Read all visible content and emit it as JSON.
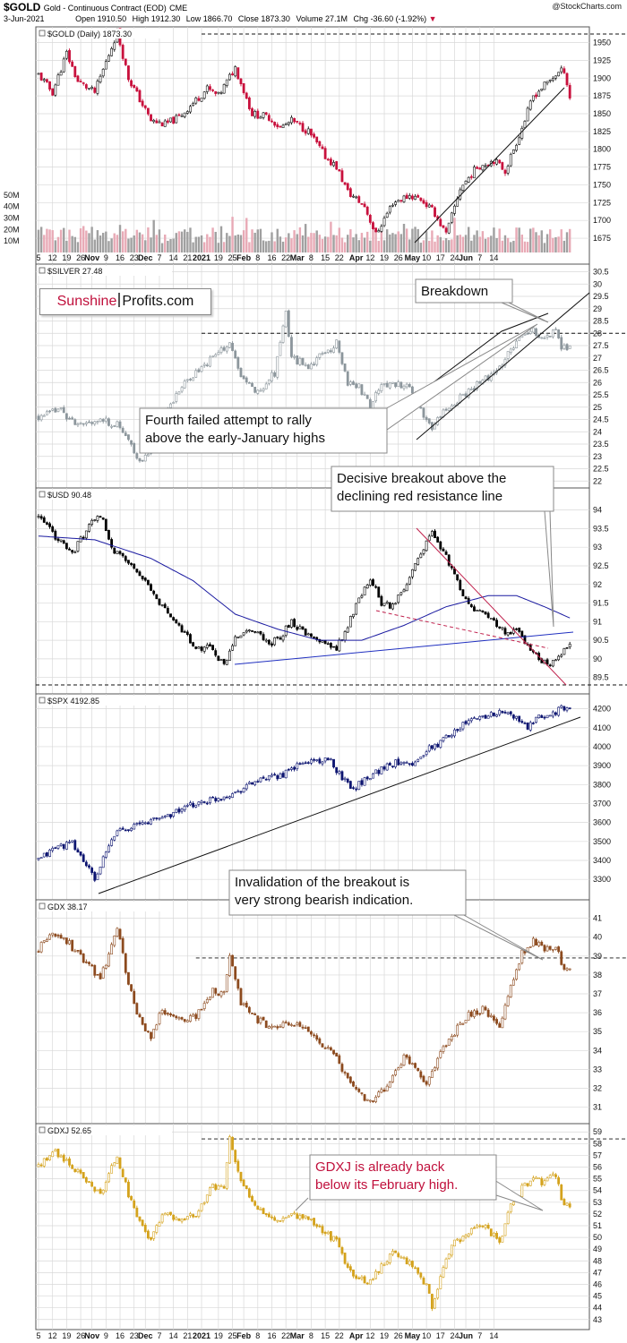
{
  "header": {
    "symbol": "$GOLD",
    "description": "Gold - Continuous Contract (EOD)",
    "exchange": "CME",
    "date": "3-Jun-2021",
    "open_label": "Open",
    "open": "1910.50",
    "high_label": "High",
    "high": "1912.30",
    "low_label": "Low",
    "low": "1866.70",
    "close_label": "Close",
    "close": "1873.30",
    "volume_label": "Volume",
    "volume": "27.1M",
    "chg_label": "Chg",
    "chg": "-36.60 (-1.92%)",
    "watermark": "@StockCharts.com"
  },
  "brand": {
    "part1": "Sunshine",
    "part2": "Profits.com"
  },
  "colors": {
    "gold_up": "#111111",
    "gold_down": "#c8103c",
    "silver": "#8c969c",
    "usd": "#000000",
    "usd_ma": "#1a1aa0",
    "spx": "#0c1470",
    "gdx": "#8c4a1e",
    "gdxj": "#d4a21c",
    "vol_up": "#a0a0a0",
    "vol_down": "#e8aab6",
    "grid": "#d8d8d8",
    "annot_red": "#c0103c",
    "resistance": "#c0204c",
    "support_blue": "#2030c0"
  },
  "x_axis": {
    "labels": [
      "5",
      "12",
      "19",
      "26",
      "Nov",
      "9",
      "16",
      "23",
      "Dec",
      "7",
      "14",
      "21",
      "2021",
      "19",
      "25",
      "Feb",
      "8",
      "16",
      "22",
      "Mar",
      "8",
      "15",
      "22",
      "Apr",
      "12",
      "19",
      "26",
      "May",
      "10",
      "17",
      "24",
      "Jun",
      "7",
      "14"
    ],
    "bold": [
      "Nov",
      "Dec",
      "2021",
      "Feb",
      "Mar",
      "Apr",
      "May",
      "Jun"
    ]
  },
  "chart_data": [
    {
      "type": "candlestick",
      "title": "$GOLD (Daily) 1873.30",
      "yticks": [
        1675,
        1700,
        1725,
        1750,
        1775,
        1800,
        1825,
        1850,
        1875,
        1900,
        1925,
        1950
      ],
      "ylim": [
        1665,
        1962
      ],
      "volume": {
        "ticks": [
          "50M",
          "40M",
          "30M",
          "20M",
          "10M"
        ],
        "ylim_millions": [
          0,
          60
        ]
      },
      "path": [
        [
          0,
          1905
        ],
        [
          5,
          1880
        ],
        [
          10,
          1935
        ],
        [
          14,
          1895
        ],
        [
          20,
          1880
        ],
        [
          28,
          1965
        ],
        [
          32,
          1900
        ],
        [
          36,
          1870
        ],
        [
          40,
          1840
        ],
        [
          45,
          1835
        ],
        [
          50,
          1845
        ],
        [
          55,
          1865
        ],
        [
          60,
          1885
        ],
        [
          64,
          1875
        ],
        [
          67,
          1895
        ],
        [
          70,
          1915
        ],
        [
          76,
          1850
        ],
        [
          82,
          1845
        ],
        [
          86,
          1830
        ],
        [
          90,
          1840
        ],
        [
          96,
          1825
        ],
        [
          102,
          1790
        ],
        [
          106,
          1775
        ],
        [
          110,
          1740
        ],
        [
          116,
          1720
        ],
        [
          120,
          1680
        ],
        [
          126,
          1725
        ],
        [
          132,
          1735
        ],
        [
          136,
          1730
        ],
        [
          141,
          1710
        ],
        [
          145,
          1680
        ],
        [
          150,
          1745
        ],
        [
          156,
          1775
        ],
        [
          162,
          1785
        ],
        [
          166,
          1770
        ],
        [
          172,
          1830
        ],
        [
          176,
          1875
        ],
        [
          180,
          1890
        ],
        [
          184,
          1905
        ],
        [
          187,
          1912
        ],
        [
          189,
          1873
        ]
      ],
      "annotations": [],
      "ref_lines": [
        {
          "type": "dashed",
          "value": 1962
        }
      ]
    },
    {
      "type": "candlestick",
      "title": "$SILVER 27.48",
      "yticks": [
        22.0,
        22.5,
        23.0,
        23.5,
        24.0,
        24.5,
        25.0,
        25.5,
        26.0,
        26.5,
        27.0,
        27.5,
        28.0,
        28.5,
        29.0,
        29.5,
        30.0,
        30.5
      ],
      "ylim": [
        21.9,
        30.7
      ],
      "path": [
        [
          0,
          24.6
        ],
        [
          8,
          24.9
        ],
        [
          14,
          24.2
        ],
        [
          20,
          24.5
        ],
        [
          28,
          24.3
        ],
        [
          32,
          23.6
        ],
        [
          36,
          22.8
        ],
        [
          40,
          23.2
        ],
        [
          46,
          25.0
        ],
        [
          52,
          26.0
        ],
        [
          58,
          26.6
        ],
        [
          64,
          27.2
        ],
        [
          68,
          27.6
        ],
        [
          72,
          26.2
        ],
        [
          78,
          25.6
        ],
        [
          84,
          26.4
        ],
        [
          88,
          28.9
        ],
        [
          90,
          27.0
        ],
        [
          96,
          26.7
        ],
        [
          102,
          27.2
        ],
        [
          106,
          27.6
        ],
        [
          110,
          26.0
        ],
        [
          114,
          25.8
        ],
        [
          118,
          25.1
        ],
        [
          122,
          26.0
        ],
        [
          128,
          25.9
        ],
        [
          132,
          25.8
        ],
        [
          136,
          24.8
        ],
        [
          140,
          24.2
        ],
        [
          144,
          24.8
        ],
        [
          150,
          25.4
        ],
        [
          156,
          25.9
        ],
        [
          160,
          26.2
        ],
        [
          165,
          26.8
        ],
        [
          170,
          27.6
        ],
        [
          175,
          28.2
        ],
        [
          180,
          27.7
        ],
        [
          184,
          28.2
        ],
        [
          186,
          27.4
        ],
        [
          189,
          27.48
        ]
      ],
      "annotations": [
        {
          "text": [
            "Breakdown"
          ]
        },
        {
          "text": [
            "Fourth failed attempt to rally",
            "above the early-January highs"
          ]
        }
      ],
      "ref_lines": [
        {
          "type": "dashed",
          "value": 28.0
        }
      ]
    },
    {
      "type": "candlestick",
      "title": "$USD 90.48",
      "yticks": [
        89.5,
        90.0,
        90.5,
        91.0,
        91.5,
        92.0,
        92.5,
        93.0,
        93.5,
        94.0
      ],
      "ylim": [
        89.3,
        94.4
      ],
      "path": [
        [
          0,
          93.8
        ],
        [
          6,
          93.3
        ],
        [
          12,
          92.8
        ],
        [
          18,
          93.6
        ],
        [
          22,
          93.9
        ],
        [
          26,
          93.0
        ],
        [
          30,
          92.7
        ],
        [
          36,
          92.3
        ],
        [
          40,
          91.8
        ],
        [
          46,
          91.2
        ],
        [
          52,
          90.7
        ],
        [
          56,
          90.2
        ],
        [
          60,
          90.4
        ],
        [
          66,
          89.8
        ],
        [
          70,
          90.6
        ],
        [
          76,
          90.8
        ],
        [
          82,
          90.4
        ],
        [
          86,
          90.6
        ],
        [
          90,
          91.0
        ],
        [
          96,
          90.6
        ],
        [
          102,
          90.4
        ],
        [
          106,
          90.3
        ],
        [
          110,
          90.9
        ],
        [
          114,
          91.6
        ],
        [
          118,
          92.2
        ],
        [
          122,
          91.5
        ],
        [
          126,
          91.4
        ],
        [
          130,
          91.9
        ],
        [
          134,
          92.6
        ],
        [
          138,
          93.1
        ],
        [
          140,
          93.4
        ],
        [
          144,
          92.9
        ],
        [
          148,
          92.2
        ],
        [
          152,
          91.6
        ],
        [
          156,
          91.3
        ],
        [
          162,
          91.0
        ],
        [
          166,
          90.7
        ],
        [
          170,
          90.8
        ],
        [
          174,
          90.3
        ],
        [
          178,
          90.0
        ],
        [
          182,
          89.9
        ],
        [
          186,
          90.1
        ],
        [
          189,
          90.48
        ]
      ],
      "series": [
        {
          "name": "moving average",
          "values": [
            [
              0,
              93.3
            ],
            [
              20,
              93.2
            ],
            [
              40,
              92.7
            ],
            [
              55,
              92.1
            ],
            [
              70,
              91.2
            ],
            [
              85,
              90.8
            ],
            [
              100,
              90.5
            ],
            [
              115,
              90.5
            ],
            [
              130,
              90.9
            ],
            [
              145,
              91.4
            ],
            [
              160,
              91.7
            ],
            [
              170,
              91.7
            ],
            [
              180,
              91.4
            ],
            [
              189,
              91.1
            ]
          ]
        }
      ],
      "annotations": [
        {
          "text": [
            "Decisive breakout above the",
            "declining red resistance line"
          ]
        }
      ],
      "ref_lines": [
        {
          "type": "dashed",
          "value": 89.3
        }
      ]
    },
    {
      "type": "candlestick",
      "title": "$SPX 4192.85",
      "yticks": [
        3300,
        3400,
        3500,
        3600,
        3700,
        3800,
        3900,
        4000,
        4100,
        4200
      ],
      "ylim": [
        3230,
        4250
      ],
      "path": [
        [
          0,
          3400
        ],
        [
          6,
          3470
        ],
        [
          12,
          3490
        ],
        [
          16,
          3400
        ],
        [
          20,
          3300
        ],
        [
          24,
          3440
        ],
        [
          28,
          3560
        ],
        [
          36,
          3590
        ],
        [
          46,
          3640
        ],
        [
          56,
          3700
        ],
        [
          64,
          3730
        ],
        [
          70,
          3760
        ],
        [
          76,
          3810
        ],
        [
          82,
          3830
        ],
        [
          88,
          3860
        ],
        [
          92,
          3900
        ],
        [
          98,
          3930
        ],
        [
          104,
          3920
        ],
        [
          108,
          3840
        ],
        [
          112,
          3780
        ],
        [
          118,
          3850
        ],
        [
          124,
          3900
        ],
        [
          130,
          3930
        ],
        [
          134,
          3910
        ],
        [
          138,
          3980
        ],
        [
          142,
          4010
        ],
        [
          148,
          4090
        ],
        [
          154,
          4140
        ],
        [
          160,
          4170
        ],
        [
          166,
          4180
        ],
        [
          170,
          4150
        ],
        [
          174,
          4100
        ],
        [
          178,
          4150
        ],
        [
          182,
          4170
        ],
        [
          186,
          4200
        ],
        [
          189,
          4192
        ]
      ],
      "annotations": []
    },
    {
      "type": "candlestick",
      "title": "GDX 38.17",
      "yticks": [
        31,
        32,
        33,
        34,
        35,
        36,
        37,
        38,
        39,
        40,
        41
      ],
      "ylim": [
        30.6,
        41.6
      ],
      "path": [
        [
          0,
          39.3
        ],
        [
          4,
          40.3
        ],
        [
          10,
          39.8
        ],
        [
          16,
          38.8
        ],
        [
          22,
          37.8
        ],
        [
          28,
          40.5
        ],
        [
          32,
          37.5
        ],
        [
          36,
          35.6
        ],
        [
          40,
          34.6
        ],
        [
          44,
          36.2
        ],
        [
          50,
          35.6
        ],
        [
          56,
          35.8
        ],
        [
          62,
          37.2
        ],
        [
          66,
          37.0
        ],
        [
          68,
          38.9
        ],
        [
          72,
          36.5
        ],
        [
          78,
          35.6
        ],
        [
          84,
          35.2
        ],
        [
          90,
          35.4
        ],
        [
          96,
          35.0
        ],
        [
          102,
          34.2
        ],
        [
          106,
          33.6
        ],
        [
          110,
          32.4
        ],
        [
          114,
          31.8
        ],
        [
          118,
          31.2
        ],
        [
          122,
          31.8
        ],
        [
          126,
          32.6
        ],
        [
          130,
          33.6
        ],
        [
          134,
          33.2
        ],
        [
          138,
          32.2
        ],
        [
          142,
          33.6
        ],
        [
          148,
          35.0
        ],
        [
          152,
          35.8
        ],
        [
          158,
          36.2
        ],
        [
          164,
          35.2
        ],
        [
          168,
          37.4
        ],
        [
          172,
          39.2
        ],
        [
          176,
          39.8
        ],
        [
          180,
          39.4
        ],
        [
          184,
          39.6
        ],
        [
          186,
          38.6
        ],
        [
          189,
          38.17
        ]
      ],
      "annotations": [
        {
          "text": [
            "Invalidation of the breakout is",
            "very strong bearish indication."
          ]
        }
      ],
      "ref_lines": [
        {
          "type": "dashed",
          "value": 38.9
        }
      ]
    },
    {
      "type": "candlestick",
      "title": "GDXJ 52.65",
      "yticks": [
        43,
        44,
        45,
        46,
        47,
        48,
        49,
        50,
        51,
        52,
        53,
        54,
        55,
        56,
        57,
        58,
        59
      ],
      "ylim": [
        42.6,
        59.4
      ],
      "path": [
        [
          0,
          56.0
        ],
        [
          5,
          57.4
        ],
        [
          10,
          56.6
        ],
        [
          16,
          55.0
        ],
        [
          22,
          53.6
        ],
        [
          28,
          57.0
        ],
        [
          32,
          53.6
        ],
        [
          36,
          51.4
        ],
        [
          40,
          49.6
        ],
        [
          44,
          52.2
        ],
        [
          50,
          51.6
        ],
        [
          56,
          51.9
        ],
        [
          62,
          54.4
        ],
        [
          66,
          54.2
        ],
        [
          68,
          58.4
        ],
        [
          72,
          54.6
        ],
        [
          78,
          52.6
        ],
        [
          84,
          51.4
        ],
        [
          90,
          52.0
        ],
        [
          96,
          51.6
        ],
        [
          102,
          50.4
        ],
        [
          106,
          49.6
        ],
        [
          110,
          47.2
        ],
        [
          114,
          46.6
        ],
        [
          118,
          46.2
        ],
        [
          122,
          47.6
        ],
        [
          126,
          48.6
        ],
        [
          130,
          48.2
        ],
        [
          134,
          47.4
        ],
        [
          138,
          45.8
        ],
        [
          140,
          44.2
        ],
        [
          144,
          47.4
        ],
        [
          148,
          49.6
        ],
        [
          152,
          50.2
        ],
        [
          158,
          51.2
        ],
        [
          164,
          49.6
        ],
        [
          168,
          52.6
        ],
        [
          172,
          54.2
        ],
        [
          176,
          55.0
        ],
        [
          180,
          54.6
        ],
        [
          184,
          55.4
        ],
        [
          186,
          53.2
        ],
        [
          189,
          52.65
        ]
      ],
      "annotations": [
        {
          "text": [
            "GDXJ is already back",
            "below its February high."
          ]
        }
      ],
      "ref_lines": [
        {
          "type": "dashed",
          "value": 58.4
        }
      ]
    }
  ]
}
